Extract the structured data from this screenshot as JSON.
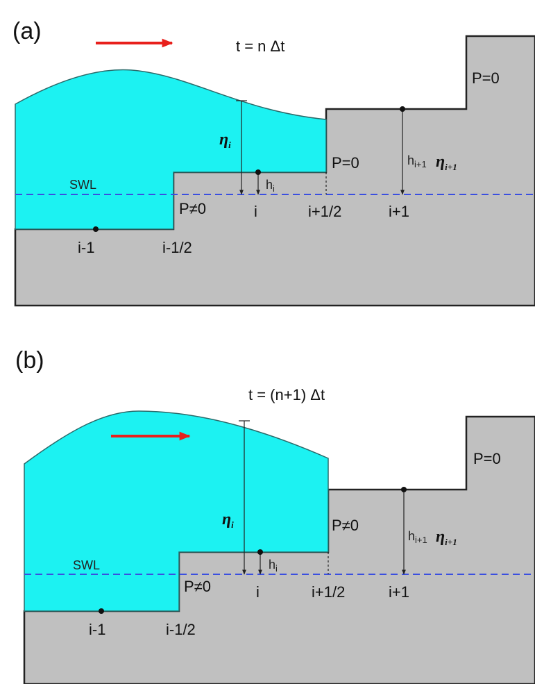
{
  "panels": [
    {
      "label": "(a)",
      "time": "t = n Δt",
      "swl": "SWL",
      "p_top": "P=0",
      "p_mid": "P=0",
      "p_low": "P≠0",
      "eta_i": {
        "symbol": "η",
        "subscript": "i"
      },
      "h_i": {
        "symbol": "h",
        "subscript": "i"
      },
      "h_next": {
        "symbol": "h",
        "subscript": "i+1"
      },
      "eta_next": {
        "symbol": "η",
        "subscript": "i+1"
      },
      "nodes": [
        "i-1",
        "i-1/2",
        "i",
        "i+1/2",
        "i+1"
      ]
    },
    {
      "label": "(b)",
      "time": "t = (n+1) Δt",
      "swl": "SWL",
      "p_top": "P=0",
      "p_mid": "P≠0",
      "p_low": "P≠0",
      "eta_i": {
        "symbol": "η",
        "subscript": "i"
      },
      "h_i": {
        "symbol": "h",
        "subscript": "i"
      },
      "h_next": {
        "symbol": "h",
        "subscript": "i+1"
      },
      "eta_next": {
        "symbol": "η",
        "subscript": "i+1"
      },
      "nodes": [
        "i-1",
        "i-1/2",
        "i",
        "i+1/2",
        "i+1"
      ]
    }
  ]
}
